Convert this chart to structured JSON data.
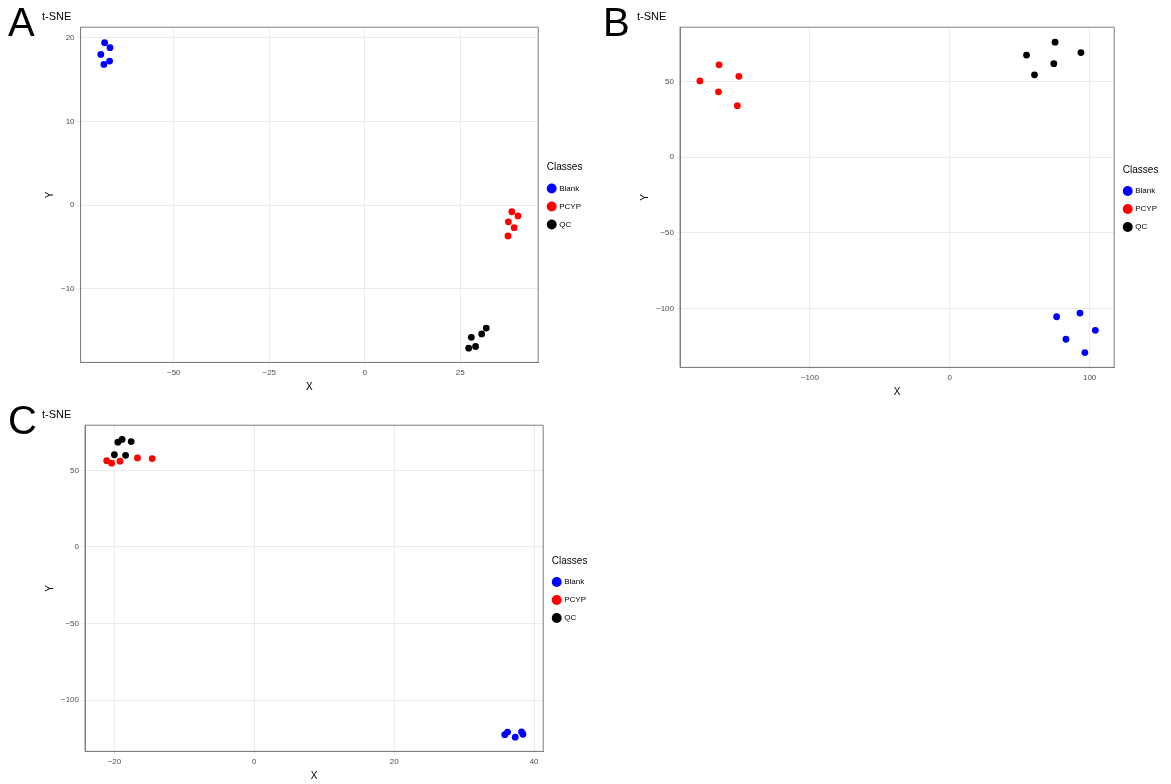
{
  "chart_data": [
    {
      "type": "scatter",
      "title": "t-SNE",
      "xlabel": "X",
      "ylabel": "Y",
      "legend_title": "Classes",
      "legend": "right",
      "grid": true,
      "marker": "circle",
      "annotations": [
        "A"
      ],
      "xlim": [
        -74.4,
        45.4
      ],
      "xticks": [
        -50,
        -25,
        0,
        25
      ],
      "ylim": [
        -18.8,
        21.25
      ],
      "yticks": [
        -10,
        0,
        10,
        20
      ],
      "series": [
        {
          "name": "Blank",
          "color": "#0000ff",
          "x": [
            -68.1,
            -66.7,
            -69.1,
            -68.3,
            -66.8
          ],
          "values": [
            19.4,
            18.8,
            18.0,
            16.8,
            17.2
          ]
        },
        {
          "name": "PCYP",
          "color": "#ff0000",
          "x": [
            38.5,
            40.1,
            37.6,
            39.1,
            37.5
          ],
          "values": [
            -0.8,
            -1.3,
            -2.0,
            -2.7,
            -3.7
          ]
        },
        {
          "name": "QC",
          "color": "#000000",
          "x": [
            31.8,
            30.6,
            27.9,
            29.0,
            27.2
          ],
          "values": [
            -14.7,
            -15.4,
            -15.8,
            -16.9,
            -17.1
          ]
        }
      ]
    },
    {
      "type": "scatter",
      "title": "t-SNE",
      "xlabel": "X",
      "ylabel": "Y",
      "legend_title": "Classes",
      "legend": "right",
      "grid": true,
      "marker": "circle",
      "annotations": [
        "B"
      ],
      "xlim": [
        -192.9,
        117.6
      ],
      "xticks": [
        -100,
        0,
        100
      ],
      "ylim": [
        -139,
        85.9
      ],
      "yticks": [
        -100,
        -50,
        0,
        50
      ],
      "series": [
        {
          "name": "Blank",
          "color": "#0000ff",
          "x": [
            76.4,
            93.1,
            104.1,
            83.1,
            96.6
          ],
          "values": [
            -105.5,
            -103.1,
            -114.5,
            -120.4,
            -129.2
          ]
        },
        {
          "name": "PCYP",
          "color": "#ff0000",
          "x": [
            -178.7,
            -165,
            -150.8,
            -165.4,
            -151.9
          ],
          "values": [
            50.4,
            61.0,
            53.4,
            43.2,
            34.0
          ]
        },
        {
          "name": "QC",
          "color": "#000000",
          "x": [
            54.9,
            75.3,
            93.8,
            74.4,
            60.6
          ],
          "values": [
            67.5,
            76.0,
            69.1,
            61.8,
            54.4
          ]
        }
      ]
    },
    {
      "type": "scatter",
      "title": "t-SNE",
      "xlabel": "X",
      "ylabel": "Y",
      "legend_title": "Classes",
      "legend": "right",
      "grid": true,
      "marker": "circle",
      "annotations": [
        "C"
      ],
      "xlim": [
        -24.2,
        41.3
      ],
      "xticks": [
        -20,
        0,
        20,
        40
      ],
      "ylim": [
        -133.5,
        79.5
      ],
      "yticks": [
        -100,
        -50,
        0,
        50
      ],
      "series": [
        {
          "name": "Blank",
          "color": "#0000ff",
          "x": [
            35.8,
            36.2,
            37.3,
            38.2,
            38.4
          ],
          "values": [
            -122.6,
            -120.9,
            -124.2,
            -120.7,
            -122.3
          ]
        },
        {
          "name": "PCYP",
          "color": "#ff0000",
          "x": [
            -21.1,
            -20.4,
            -19.2,
            -16.7,
            -14.6
          ],
          "values": [
            56.3,
            54.7,
            56.0,
            58.1,
            57.7
          ]
        },
        {
          "name": "QC",
          "color": "#000000",
          "x": [
            -19.5,
            -18.9,
            -17.6,
            -20.0,
            -18.4
          ],
          "values": [
            68.4,
            70.2,
            68.8,
            60.2,
            59.8
          ]
        }
      ]
    }
  ]
}
